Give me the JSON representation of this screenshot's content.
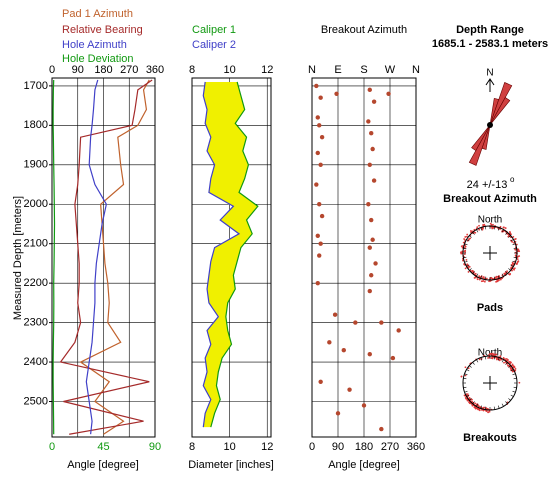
{
  "chart_data": [
    {
      "type": "line",
      "xlabel": "Angle [degree]",
      "ylabel": "Measured Depth [meters]",
      "xlim": [
        0,
        360
      ],
      "xticks": [
        0,
        90,
        180,
        270,
        360
      ],
      "x2lim": [
        0,
        90
      ],
      "x2ticks": [
        0,
        45,
        90
      ],
      "ylim": [
        1680,
        2590
      ],
      "yticks": [
        1700,
        1800,
        1900,
        2000,
        2100,
        2200,
        2300,
        2400,
        2500
      ],
      "grid": true,
      "depth": [
        1685,
        1710,
        1760,
        1800,
        1830,
        1900,
        1950,
        2000,
        2050,
        2100,
        2150,
        2200,
        2250,
        2300,
        2350,
        2400,
        2450,
        2500,
        2550,
        2583
      ],
      "series": [
        {
          "name": "Pad 1 Azimuth",
          "color": "#c0622d",
          "values": [
            340,
            320,
            330,
            300,
            230,
            240,
            250,
            170,
            175,
            180,
            185,
            195,
            200,
            195,
            240,
            100,
            200,
            150,
            250,
            180
          ]
        },
        {
          "name": "Relative Bearing",
          "color": "#a52a2a",
          "values": [
            350,
            300,
            290,
            280,
            100,
            95,
            90,
            80,
            85,
            90,
            95,
            95,
            90,
            100,
            80,
            30,
            340,
            40,
            320,
            60
          ]
        },
        {
          "name": "Hole Azimuth",
          "color": "#4040c8",
          "values": [
            160,
            150,
            145,
            140,
            135,
            130,
            150,
            190,
            175,
            165,
            155,
            150,
            150,
            145,
            140,
            130,
            120,
            130,
            140,
            135
          ]
        },
        {
          "name": "Hole Deviation",
          "color": "#119911",
          "axis": "x2",
          "values": [
            1.5,
            1.2,
            1,
            1,
            1.2,
            1.5,
            1.8,
            2,
            2.2,
            2,
            1.8,
            1.5,
            1.6,
            1.5,
            1.2,
            1,
            1,
            1.2,
            1.4,
            1.5
          ]
        }
      ]
    },
    {
      "type": "line",
      "xlabel": "Diameter [inches]",
      "xlim": [
        8,
        12.2
      ],
      "xticks": [
        8,
        10,
        12
      ],
      "ylim": [
        1680,
        2590
      ],
      "yticks": [
        1700,
        1800,
        1900,
        2000,
        2100,
        2200,
        2300,
        2400,
        2500
      ],
      "grid": true,
      "fill_color": "#f0f000",
      "depth": [
        1690,
        1725,
        1760,
        1795,
        1830,
        1865,
        1900,
        1935,
        1970,
        2005,
        2040,
        2075,
        2110,
        2145,
        2180,
        2215,
        2250,
        2285,
        2320,
        2355,
        2390,
        2425,
        2460,
        2495,
        2530,
        2565
      ],
      "series": [
        {
          "name": "Caliper 1",
          "color": "#119911",
          "values": [
            10.4,
            10.6,
            10.8,
            10.3,
            10.9,
            10.7,
            11.0,
            10.8,
            10.5,
            11.5,
            10.9,
            11.2,
            10.6,
            10.4,
            10.2,
            10.3,
            9.9,
            9.8,
            9.9,
            10.1,
            9.6,
            9.4,
            9.3,
            9.5,
            9.2,
            9.0
          ]
        },
        {
          "name": "Caliper 2",
          "color": "#4040c8",
          "values": [
            8.7,
            8.6,
            8.8,
            8.7,
            9.0,
            8.8,
            9.2,
            9.0,
            8.9,
            10.2,
            9.5,
            10.5,
            9.2,
            9.0,
            8.9,
            8.8,
            8.9,
            9.4,
            8.8,
            9.0,
            8.7,
            8.8,
            8.6,
            9.0,
            8.7,
            8.6
          ]
        }
      ]
    },
    {
      "type": "scatter",
      "title": "Breakout Azimuth",
      "xlabel": "Angle [degree]",
      "xlim": [
        0,
        360
      ],
      "xticks": [
        0,
        90,
        180,
        270,
        360
      ],
      "x2ticks": [
        {
          "value": 0,
          "label": "N"
        },
        {
          "value": 90,
          "label": "E"
        },
        {
          "value": 180,
          "label": "S"
        },
        {
          "value": 270,
          "label": "W"
        },
        {
          "value": 360,
          "label": "N"
        }
      ],
      "ylim": [
        1680,
        2590
      ],
      "yticks": [
        1700,
        1800,
        1900,
        2000,
        2100,
        2200,
        2300,
        2400,
        2500
      ],
      "grid": true,
      "series": [
        {
          "color": "#b5472e",
          "x": [
            15,
            30,
            85,
            20,
            25,
            35,
            20,
            30,
            15,
            25,
            35,
            20,
            30,
            25,
            20,
            200,
            215,
            265,
            195,
            205,
            210,
            200,
            215,
            195,
            205,
            210,
            200,
            220,
            205,
            200,
            80,
            150,
            240,
            300,
            60,
            110,
            200,
            280,
            30,
            130,
            180,
            90,
            240
          ],
          "values": [
            1700,
            1730,
            1720,
            1780,
            1800,
            1830,
            1870,
            1900,
            1950,
            2000,
            2030,
            2080,
            2100,
            2130,
            2200,
            1710,
            1740,
            1720,
            1790,
            1820,
            1860,
            1900,
            1940,
            2000,
            2040,
            2090,
            2110,
            2150,
            2180,
            2220,
            2280,
            2300,
            2300,
            2320,
            2350,
            2370,
            2380,
            2390,
            2450,
            2470,
            2510,
            2530,
            2570
          ]
        }
      ]
    }
  ],
  "sidebar": {
    "title": "Depth Range",
    "range": "1685.1 - 2583.1 meters",
    "north": "N",
    "rose": {
      "directions": [
        14,
        24,
        34,
        194,
        204,
        214
      ],
      "lengths": [
        0.6,
        1,
        0.7,
        0.55,
        0.95,
        0.65
      ],
      "color": "#d04040"
    },
    "orientation": "24 +/-13",
    "degree_mark": "o",
    "orientation_title": "Breakout Azimuth",
    "pads_north": "North",
    "pads_title": "Pads",
    "breakouts_north": "North",
    "breakouts_title": "Breakouts"
  }
}
